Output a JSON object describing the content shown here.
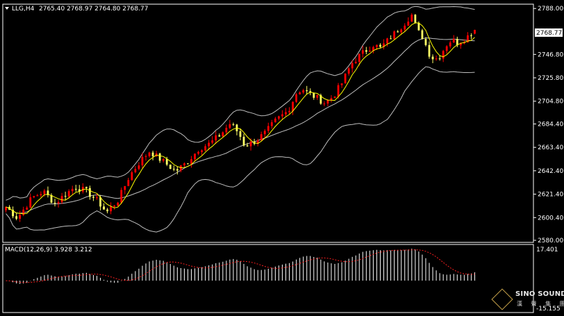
{
  "header": {
    "symbol_label": "LLG,H4",
    "ohlc_text": "2765.40 2768.97 2764.80 2768.77"
  },
  "price_pane": {
    "ticks": [
      "2788.00",
      "2768.77",
      "2746.80",
      "2725.80",
      "2704.80",
      "2684.40",
      "2663.40",
      "2642.40",
      "2621.40",
      "2600.40",
      "2580.00"
    ],
    "current_price": "2768.77"
  },
  "macd_pane": {
    "label": "MACD(12,26,9) 3.928 3.212",
    "top_tick": "17.401",
    "bottom_tick": "-15.155"
  },
  "watermark": {
    "line1": "SINO SOUND",
    "line2": "漢 聲 集 團"
  },
  "colors": {
    "up_candle": "#ff0000",
    "down_candle": "#ffff66",
    "ma_fast": "#ffff00",
    "bollinger": "#bfbfbf",
    "macd_hist": "#ffffff",
    "macd_signal": "#ff2020",
    "current_price_bg": "#ffffff"
  },
  "chart_data": {
    "type": "candlestick",
    "symbol": "LLG",
    "timeframe": "H4",
    "last_bar": {
      "open": 2765.4,
      "high": 2768.97,
      "low": 2764.8,
      "close": 2768.77
    },
    "ylim": [
      2580.0,
      2790.0
    ],
    "close_path": [
      [
        0,
        2610
      ],
      [
        8,
        2600
      ],
      [
        18,
        2618
      ],
      [
        26,
        2624
      ],
      [
        34,
        2613
      ],
      [
        40,
        2620
      ],
      [
        48,
        2628
      ],
      [
        56,
        2624
      ],
      [
        64,
        2615
      ],
      [
        70,
        2605
      ],
      [
        78,
        2616
      ],
      [
        86,
        2638
      ],
      [
        94,
        2652
      ],
      [
        100,
        2660
      ],
      [
        106,
        2654
      ],
      [
        112,
        2648
      ],
      [
        118,
        2642
      ],
      [
        126,
        2650
      ],
      [
        134,
        2662
      ],
      [
        142,
        2667
      ],
      [
        150,
        2676
      ],
      [
        156,
        2685
      ],
      [
        162,
        2676
      ],
      [
        166,
        2665
      ],
      [
        172,
        2668
      ],
      [
        180,
        2676
      ],
      [
        188,
        2688
      ],
      [
        196,
        2696
      ],
      [
        202,
        2712
      ],
      [
        206,
        2716
      ],
      [
        210,
        2712
      ],
      [
        216,
        2708
      ],
      [
        222,
        2703
      ],
      [
        228,
        2710
      ],
      [
        234,
        2722
      ],
      [
        240,
        2738
      ],
      [
        246,
        2746
      ],
      [
        252,
        2752
      ],
      [
        256,
        2756
      ],
      [
        260,
        2752
      ],
      [
        266,
        2760
      ],
      [
        272,
        2768
      ],
      [
        278,
        2776
      ],
      [
        282,
        2783
      ],
      [
        286,
        2768
      ],
      [
        290,
        2762
      ],
      [
        294,
        2748
      ],
      [
        298,
        2742
      ],
      [
        302,
        2746
      ],
      [
        306,
        2755
      ],
      [
        310,
        2760
      ],
      [
        314,
        2757
      ],
      [
        318,
        2760
      ],
      [
        322,
        2764
      ],
      [
        326,
        2768.77
      ]
    ],
    "macd": {
      "main_tick_range": [
        -15.155,
        17.401
      ],
      "last_main": 3.928,
      "last_signal": 3.212
    }
  }
}
